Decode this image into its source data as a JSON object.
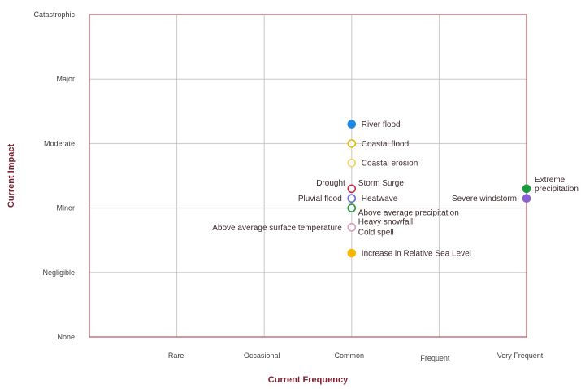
{
  "chart_data": {
    "type": "scatter",
    "title": "",
    "xlabel": "Current Frequency",
    "ylabel": "Current Impact",
    "x_categories": [
      "",
      "Rare",
      "Occasional",
      "Common",
      "Frequent",
      "Very Frequent"
    ],
    "y_categories": [
      "None",
      "Negligible",
      "Minor",
      "Moderate",
      "Major",
      "Catastrophic"
    ],
    "xlim": [
      0,
      5
    ],
    "ylim": [
      0,
      5
    ],
    "grid": true,
    "colors": {
      "plot_border": "#b05565",
      "grid": "#c8c8c8",
      "axis_title": "#7b1f2e"
    },
    "points": [
      {
        "label": "River flood",
        "x": 3,
        "y": 3.3,
        "color": "#1e88e5",
        "filled": true,
        "label_side": "right"
      },
      {
        "label": "Coastal flood",
        "x": 3,
        "y": 3.0,
        "color": "#e6b800",
        "filled": false,
        "label_side": "right"
      },
      {
        "label": "Coastal erosion",
        "x": 3,
        "y": 2.7,
        "color": "#f0d060",
        "filled": false,
        "label_side": "right"
      },
      {
        "label": "Storm Surge",
        "x": 3,
        "y": 2.3,
        "color": "#c62840",
        "filled": false,
        "label_side": "right-up"
      },
      {
        "label": "Drought",
        "x": 3,
        "y": 2.3,
        "color": "#c62840",
        "filled": false,
        "label_side": "left-up"
      },
      {
        "label": "Heatwave",
        "x": 3,
        "y": 2.15,
        "color": "#e53950",
        "filled": false,
        "label_side": "right"
      },
      {
        "label": "Pluvial flood",
        "x": 3,
        "y": 2.15,
        "color": "#5b6fe0",
        "filled": false,
        "label_side": "left"
      },
      {
        "label": "Above average precipitation",
        "x": 3,
        "y": 2.0,
        "color": "#1a9a3a",
        "filled": false,
        "label_side": "right-down"
      },
      {
        "label": "Heavy snowfall",
        "x": 3,
        "y": 1.7,
        "color": "#b07ab8",
        "filled": false,
        "label_side": "right-up"
      },
      {
        "label": "Cold spell",
        "x": 3,
        "y": 1.7,
        "color": "#b07ab8",
        "filled": false,
        "label_side": "right-down"
      },
      {
        "label": "Above average surface temperature",
        "x": 3,
        "y": 1.7,
        "color": "#e0a0b0",
        "filled": false,
        "label_side": "left"
      },
      {
        "label": "Increase in Relative Sea Level",
        "x": 3,
        "y": 1.3,
        "color": "#f5b800",
        "filled": true,
        "label_side": "right"
      },
      {
        "label": "Extreme precipitation",
        "x": 5,
        "y": 2.3,
        "color": "#1a9a3a",
        "filled": true,
        "label_side": "right-up"
      },
      {
        "label": "Severe windstorm",
        "x": 5,
        "y": 2.15,
        "color": "#8a5fd6",
        "filled": true,
        "label_side": "left"
      }
    ]
  }
}
